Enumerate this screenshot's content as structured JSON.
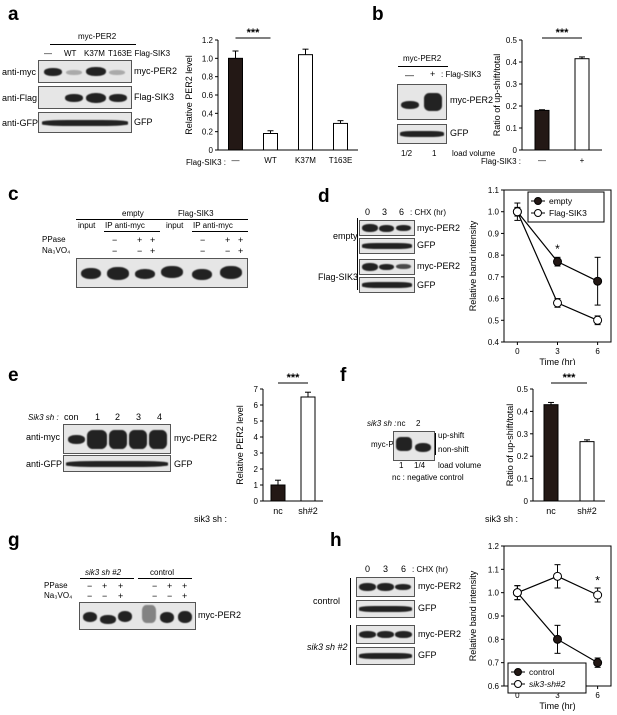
{
  "panels": [
    "a",
    "b",
    "c",
    "d",
    "e",
    "f",
    "g",
    "h"
  ],
  "a": {
    "header": "myc-PER2",
    "lanes": [
      "—",
      "WT",
      "K37M",
      "T163E"
    ],
    "lane_label": ": Flag-SIK3",
    "rows": [
      "anti-myc",
      "anti-Flag",
      "anti-GFP"
    ],
    "bands": [
      "myc-PER2",
      "Flag-SIK3",
      "GFP"
    ],
    "sig": "***",
    "x_prefix": "Flag-SIK3 :",
    "chart_data": {
      "type": "bar",
      "categories": [
        "—",
        "WT",
        "K37M",
        "T163E"
      ],
      "values": [
        1.0,
        0.18,
        1.04,
        0.29
      ],
      "errors": [
        0.08,
        0.03,
        0.06,
        0.03
      ],
      "fills": [
        "#231815",
        "#ffffff",
        "#ffffff",
        "#ffffff"
      ],
      "ylabel": "Relative PER2 level",
      "ylim": [
        0,
        1.2
      ],
      "yticks": [
        "0",
        "0.2",
        "0.4",
        "0.6",
        "0.8",
        "1.0",
        "1.2"
      ]
    }
  },
  "b": {
    "header": "myc-PER2",
    "lanes": [
      "—",
      "+"
    ],
    "lane_label": ": Flag-SIK3",
    "bands": [
      "myc-PER2",
      "GFP"
    ],
    "load": [
      "1/2",
      "1"
    ],
    "load_label": "load volume",
    "sig": "***",
    "x_prefix": "Flag-SIK3 :",
    "chart_data": {
      "type": "bar",
      "categories": [
        "—",
        "+"
      ],
      "values": [
        0.18,
        0.415
      ],
      "errors": [
        0.003,
        0.008
      ],
      "fills": [
        "#231815",
        "#ffffff"
      ],
      "ylabel": "Ratio of up-shift/total",
      "ylim": [
        0,
        0.5
      ],
      "yticks": [
        "0",
        "0.1",
        "0.2",
        "0.3",
        "0.4",
        "0.5"
      ]
    }
  },
  "c": {
    "groups": [
      "empty",
      "Flag-SIK3"
    ],
    "subgroups": [
      "input",
      "IP anti-myc",
      "input",
      "IP anti-myc"
    ],
    "rows": [
      "PPase",
      "Na₃VO₄"
    ],
    "ppase": [
      "−",
      "+",
      "+",
      "−",
      "+",
      "+"
    ],
    "na": [
      "−",
      "−",
      "+",
      "−",
      "−",
      "+"
    ]
  },
  "d": {
    "lanes": [
      "0",
      "3",
      "6"
    ],
    "lane_label": ": CHX (hr)",
    "conditions": [
      "empty",
      "Flag-SIK3"
    ],
    "bands": [
      "myc-PER2",
      "GFP",
      "myc-PER2",
      "GFP"
    ],
    "sig": "*",
    "chart_data": {
      "type": "line",
      "x": [
        0,
        3,
        6
      ],
      "series": [
        {
          "name": "empty",
          "values": [
            1.0,
            0.77,
            0.68
          ],
          "errors": [
            0.04,
            0.02,
            0.11
          ],
          "marker": "filled"
        },
        {
          "name": "Flag-SIK3",
          "values": [
            1.0,
            0.58,
            0.5
          ],
          "errors": [
            0.02,
            0.02,
            0.02
          ],
          "marker": "open"
        }
      ],
      "xlabel": "Time (hr)",
      "ylabel": "Relative band intensity",
      "xlim": [
        -1,
        7
      ],
      "ylim": [
        0.4,
        1.1
      ],
      "xticks": [
        "0",
        "3",
        "6"
      ],
      "yticks": [
        "0.4",
        "0.5",
        "0.6",
        "0.7",
        "0.8",
        "0.9",
        "1.0",
        "1.1"
      ],
      "legend": "top-right"
    }
  },
  "e": {
    "lane_prefix": "Sik3 sh :",
    "lanes": [
      "con",
      "1",
      "2",
      "3",
      "4"
    ],
    "rows": [
      "anti-myc",
      "anti-GFP"
    ],
    "bands": [
      "myc-PER2",
      "GFP"
    ],
    "sig": "***",
    "x_prefix": "sik3 sh :",
    "chart_data": {
      "type": "bar",
      "categories": [
        "nc",
        "sh#2"
      ],
      "values": [
        1.0,
        6.5
      ],
      "errors": [
        0.3,
        0.3
      ],
      "fills": [
        "#231815",
        "#ffffff"
      ],
      "ylabel": "Relative PER2 level",
      "ylim": [
        0,
        7
      ],
      "yticks": [
        "0",
        "1",
        "2",
        "3",
        "4",
        "5",
        "6",
        "7"
      ]
    }
  },
  "f": {
    "lane_prefix": "sik3 sh :",
    "lanes": [
      "nc",
      "2"
    ],
    "band": "myc-PER2",
    "shift_labels": [
      "up-shift",
      "non-shift"
    ],
    "load": [
      "1",
      "1/4"
    ],
    "load_label": "load volume",
    "footnote": "nc : negative control",
    "sig": "***",
    "x_prefix": "sik3 sh :",
    "chart_data": {
      "type": "bar",
      "categories": [
        "nc",
        "sh#2"
      ],
      "values": [
        0.43,
        0.265
      ],
      "errors": [
        0.01,
        0.008
      ],
      "fills": [
        "#231815",
        "#ffffff"
      ],
      "ylabel": "Ratio of up-shift/total",
      "ylim": [
        0,
        0.5
      ],
      "yticks": [
        "0",
        "0.1",
        "0.2",
        "0.3",
        "0.4",
        "0.5"
      ]
    }
  },
  "g": {
    "groups": [
      "sik3 sh #2",
      "control"
    ],
    "rows": [
      "PPase",
      "Na₃VO₄"
    ],
    "ppase": [
      "−",
      "+",
      "+",
      "−",
      "+",
      "+"
    ],
    "na": [
      "−",
      "−",
      "+",
      "−",
      "−",
      "+"
    ],
    "band": "myc-PER2"
  },
  "h": {
    "lanes": [
      "0",
      "3",
      "6"
    ],
    "lane_label": ": CHX (hr)",
    "conditions": [
      "control",
      "sik3 sh #2"
    ],
    "bands": [
      "myc-PER2",
      "GFP",
      "myc-PER2",
      "GFP"
    ],
    "sig": "*",
    "chart_data": {
      "type": "line",
      "x": [
        0,
        3,
        6
      ],
      "series": [
        {
          "name": "control",
          "values": [
            1.0,
            0.8,
            0.7
          ],
          "errors": [
            0.03,
            0.06,
            0.02
          ],
          "marker": "filled"
        },
        {
          "name": "sik3-sh#2",
          "values": [
            1.0,
            1.07,
            0.99
          ],
          "errors": [
            0.03,
            0.05,
            0.03
          ],
          "marker": "open"
        }
      ],
      "xlabel": "Time (hr)",
      "ylabel": "Relative band intensity",
      "xlim": [
        -1,
        7
      ],
      "ylim": [
        0.6,
        1.2
      ],
      "xticks": [
        "0",
        "3",
        "6"
      ],
      "yticks": [
        "0.6",
        "0.7",
        "0.8",
        "0.9",
        "1.0",
        "1.1",
        "1.2"
      ],
      "legend": "bottom-left"
    }
  }
}
